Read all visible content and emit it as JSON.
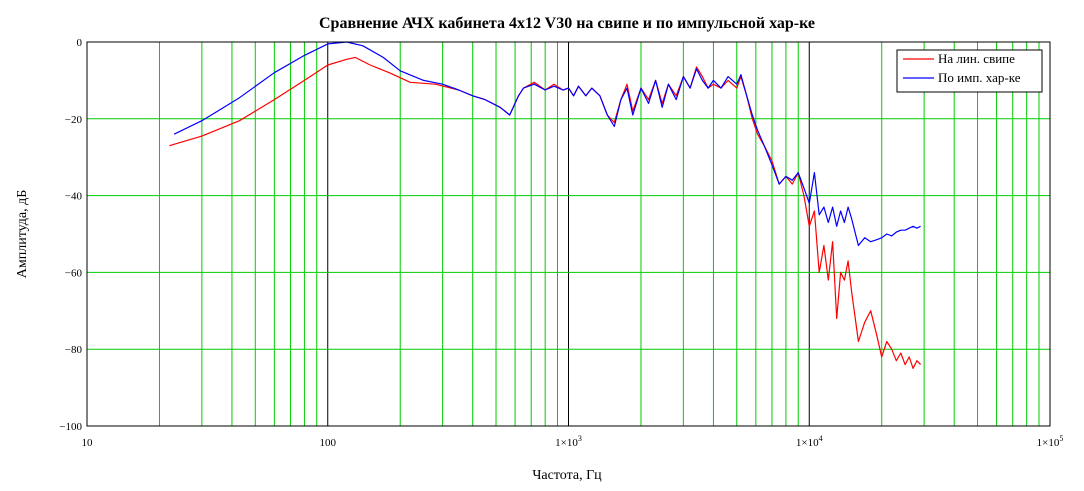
{
  "chart_data": {
    "type": "line",
    "title": "Сравнение АЧХ кабинета 4x12 V30 на свипе и по импульсной хар-ке",
    "xlabel": "Частота, Гц",
    "ylabel": "Амплитуда, дБ",
    "x_scale": "log",
    "xlim": [
      10,
      100000
    ],
    "ylim": [
      -100,
      0
    ],
    "x_ticks": [
      {
        "value": 10,
        "label": "10"
      },
      {
        "value": 100,
        "label": "100"
      },
      {
        "value": 1000,
        "label": "1×10",
        "exp": "3"
      },
      {
        "value": 10000,
        "label": "1×10",
        "exp": "4"
      },
      {
        "value": 100000,
        "label": "1×10",
        "exp": "5"
      }
    ],
    "y_ticks": [
      {
        "value": 0,
        "label": "0"
      },
      {
        "value": -20,
        "label": "−20"
      },
      {
        "value": -40,
        "label": "−40"
      },
      {
        "value": -60,
        "label": "−60"
      },
      {
        "value": -80,
        "label": "−80"
      },
      {
        "value": -100,
        "label": "−100"
      }
    ],
    "grid": true,
    "grid_color": "#00cc00",
    "major_grid_color": "#000000",
    "legend_position": "top-right",
    "series": [
      {
        "name": "На лин. свипе",
        "color": "#ff0000",
        "points": [
          [
            22,
            -27
          ],
          [
            30,
            -24.5
          ],
          [
            43,
            -20.5
          ],
          [
            60,
            -15
          ],
          [
            80,
            -10
          ],
          [
            100,
            -6
          ],
          [
            120,
            -4.5
          ],
          [
            130,
            -4
          ],
          [
            150,
            -6
          ],
          [
            180,
            -8
          ],
          [
            220,
            -10.5
          ],
          [
            280,
            -11
          ],
          [
            350,
            -12.5
          ],
          [
            400,
            -14
          ],
          [
            450,
            -15
          ],
          [
            520,
            -17
          ],
          [
            570,
            -19
          ],
          [
            620,
            -14
          ],
          [
            650,
            -12
          ],
          [
            720,
            -10.5
          ],
          [
            800,
            -12.5
          ],
          [
            870,
            -11
          ],
          [
            950,
            -12.5
          ],
          [
            1000,
            -12
          ],
          [
            1050,
            -14
          ],
          [
            1100,
            -11.5
          ],
          [
            1180,
            -14
          ],
          [
            1250,
            -12
          ],
          [
            1350,
            -14
          ],
          [
            1450,
            -19
          ],
          [
            1550,
            -21
          ],
          [
            1650,
            -15
          ],
          [
            1750,
            -11
          ],
          [
            1850,
            -18
          ],
          [
            2000,
            -12
          ],
          [
            2150,
            -15
          ],
          [
            2300,
            -10
          ],
          [
            2450,
            -16
          ],
          [
            2600,
            -11
          ],
          [
            2800,
            -14
          ],
          [
            3000,
            -9
          ],
          [
            3200,
            -12
          ],
          [
            3400,
            -6.5
          ],
          [
            3600,
            -9
          ],
          [
            3800,
            -12
          ],
          [
            4000,
            -11
          ],
          [
            4300,
            -12
          ],
          [
            4600,
            -10
          ],
          [
            5000,
            -12
          ],
          [
            5200,
            -9
          ],
          [
            5500,
            -14
          ],
          [
            5800,
            -20
          ],
          [
            6100,
            -24
          ],
          [
            6500,
            -27
          ],
          [
            7000,
            -31
          ],
          [
            7500,
            -37
          ],
          [
            8000,
            -35
          ],
          [
            8500,
            -37
          ],
          [
            9000,
            -34
          ],
          [
            9500,
            -40
          ],
          [
            10000,
            -48
          ],
          [
            10500,
            -44
          ],
          [
            11000,
            -60
          ],
          [
            11500,
            -53
          ],
          [
            12000,
            -62
          ],
          [
            12500,
            -52
          ],
          [
            13000,
            -72
          ],
          [
            13500,
            -60
          ],
          [
            14000,
            -62
          ],
          [
            14500,
            -57
          ],
          [
            15000,
            -65
          ],
          [
            16000,
            -78
          ],
          [
            17000,
            -73
          ],
          [
            18000,
            -70
          ],
          [
            19000,
            -76
          ],
          [
            20000,
            -82
          ],
          [
            21000,
            -78
          ],
          [
            22000,
            -80
          ],
          [
            23000,
            -83
          ],
          [
            24000,
            -81
          ],
          [
            25000,
            -84
          ],
          [
            26000,
            -82
          ],
          [
            27000,
            -85
          ],
          [
            28000,
            -83
          ],
          [
            29000,
            -84
          ]
        ]
      },
      {
        "name": "По имп. хар-ке",
        "color": "#0000ff",
        "points": [
          [
            23,
            -24
          ],
          [
            30,
            -20.5
          ],
          [
            43,
            -14.5
          ],
          [
            60,
            -8
          ],
          [
            80,
            -3.5
          ],
          [
            100,
            -0.5
          ],
          [
            120,
            0
          ],
          [
            140,
            -1
          ],
          [
            170,
            -4
          ],
          [
            200,
            -7.5
          ],
          [
            250,
            -10
          ],
          [
            300,
            -11
          ],
          [
            350,
            -12.5
          ],
          [
            400,
            -14
          ],
          [
            450,
            -15
          ],
          [
            520,
            -17
          ],
          [
            570,
            -19
          ],
          [
            620,
            -14
          ],
          [
            650,
            -12
          ],
          [
            720,
            -11
          ],
          [
            800,
            -12.5
          ],
          [
            870,
            -11.5
          ],
          [
            950,
            -12.5
          ],
          [
            1000,
            -12
          ],
          [
            1050,
            -14
          ],
          [
            1100,
            -11.5
          ],
          [
            1180,
            -14
          ],
          [
            1250,
            -12
          ],
          [
            1350,
            -14
          ],
          [
            1450,
            -19
          ],
          [
            1550,
            -22
          ],
          [
            1650,
            -15
          ],
          [
            1750,
            -12
          ],
          [
            1850,
            -19
          ],
          [
            2000,
            -12
          ],
          [
            2150,
            -16
          ],
          [
            2300,
            -10
          ],
          [
            2450,
            -17
          ],
          [
            2600,
            -11
          ],
          [
            2800,
            -15
          ],
          [
            3000,
            -9
          ],
          [
            3200,
            -12
          ],
          [
            3400,
            -7
          ],
          [
            3600,
            -10
          ],
          [
            3800,
            -12
          ],
          [
            4000,
            -10
          ],
          [
            4300,
            -12
          ],
          [
            4600,
            -9
          ],
          [
            5000,
            -11
          ],
          [
            5200,
            -8.5
          ],
          [
            5500,
            -14
          ],
          [
            5800,
            -19
          ],
          [
            6100,
            -23
          ],
          [
            6500,
            -27
          ],
          [
            7000,
            -32
          ],
          [
            7500,
            -37
          ],
          [
            8000,
            -35
          ],
          [
            8500,
            -36
          ],
          [
            9000,
            -34
          ],
          [
            9500,
            -38
          ],
          [
            10000,
            -42
          ],
          [
            10500,
            -34
          ],
          [
            11000,
            -45
          ],
          [
            11500,
            -43
          ],
          [
            12000,
            -47
          ],
          [
            12500,
            -43
          ],
          [
            13000,
            -48
          ],
          [
            13500,
            -44
          ],
          [
            14000,
            -47
          ],
          [
            14500,
            -43
          ],
          [
            15000,
            -46
          ],
          [
            16000,
            -53
          ],
          [
            17000,
            -51
          ],
          [
            18000,
            -52
          ],
          [
            19000,
            -51.5
          ],
          [
            20000,
            -51
          ],
          [
            21000,
            -50
          ],
          [
            22000,
            -50.5
          ],
          [
            23000,
            -49.5
          ],
          [
            24000,
            -49
          ],
          [
            25000,
            -49
          ],
          [
            26000,
            -48.5
          ],
          [
            27000,
            -48
          ],
          [
            28000,
            -48.5
          ],
          [
            29000,
            -48
          ]
        ]
      }
    ]
  }
}
